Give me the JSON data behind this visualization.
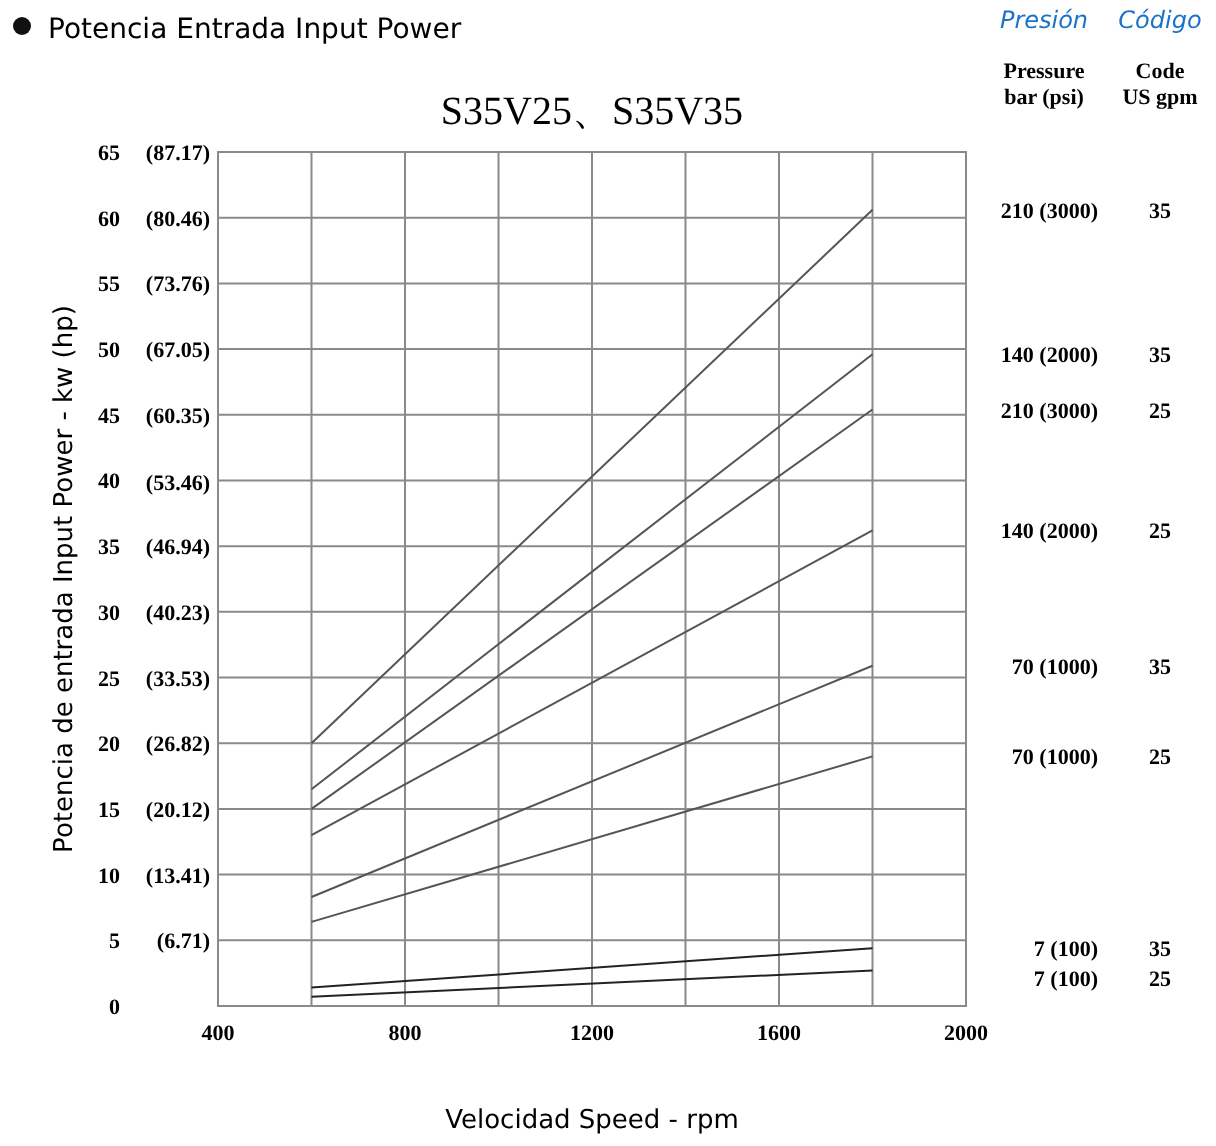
{
  "chart_data": {
    "type": "line",
    "title": "Potencia Entrada Input Power",
    "subtitle": "S35V25、S35V35",
    "xlabel": "Velocidad Speed - rpm",
    "ylabel": "Potencia de entrada Input Power - kw (hp)",
    "xlim": [
      400,
      2000
    ],
    "xticks": [
      400,
      {
        "value": 600,
        "label": null
      },
      800,
      {
        "value": 1000,
        "label": null
      },
      1200,
      {
        "value": 1400,
        "label": null
      },
      1600,
      {
        "value": 1800,
        "label": null
      },
      2000
    ],
    "ylim": [
      0,
      65
    ],
    "yticks": [
      0,
      5,
      10,
      15,
      20,
      25,
      30,
      35,
      40,
      45,
      50,
      55,
      60,
      65
    ],
    "y2lim": [
      0,
      87.17
    ],
    "y2ticks": [
      {
        "value": 6.71,
        "label": "(6.71)"
      },
      {
        "value": 13.41,
        "label": "(13.41)"
      },
      {
        "value": 20.12,
        "label": "(20.12)"
      },
      {
        "value": 26.82,
        "label": "(26.82)"
      },
      {
        "value": 33.53,
        "label": "(33.53)"
      },
      {
        "value": 40.23,
        "label": "(40.23)"
      },
      {
        "value": 46.94,
        "label": "(46.94)"
      },
      {
        "value": 53.46,
        "label": "(53.46)"
      },
      {
        "value": 60.35,
        "label": "(60.35)"
      },
      {
        "value": 67.05,
        "label": "(67.05)"
      },
      {
        "value": 73.76,
        "label": "(73.76)"
      },
      {
        "value": 80.46,
        "label": "(80.46)"
      },
      {
        "value": 87.17,
        "label": "(87.17)"
      }
    ],
    "grid": true,
    "x": [
      600,
      1800
    ],
    "series": [
      {
        "name": "210 (3000)",
        "color": "#555555",
        "values": [
          20,
          60.6
        ]
      },
      {
        "name": "140 (2000)",
        "color": "#555555",
        "values": [
          16.5,
          49.6
        ]
      },
      {
        "name": "210 (3000)",
        "color": "#555555",
        "values": [
          15,
          45.4
        ]
      },
      {
        "name": "140 (2000)",
        "color": "#555555",
        "values": [
          13,
          36.2
        ]
      },
      {
        "name": "70 (1000)",
        "color": "#555555",
        "values": [
          8.3,
          25.9
        ]
      },
      {
        "name": "70 (1000)",
        "color": "#555555",
        "values": [
          6.4,
          19
        ]
      },
      {
        "name": "7 (100)",
        "color": "#222222",
        "values": [
          1.4,
          4.4
        ]
      },
      {
        "name": "7 (100)",
        "color": "#222222",
        "values": [
          0.7,
          2.7
        ]
      }
    ],
    "annotations": [
      "Presión",
      "Código",
      "Pressure\nbar (psi)",
      "Code\nUS gpm",
      "35",
      "35",
      "25",
      "25",
      "35",
      "25",
      "35",
      "25"
    ]
  }
}
